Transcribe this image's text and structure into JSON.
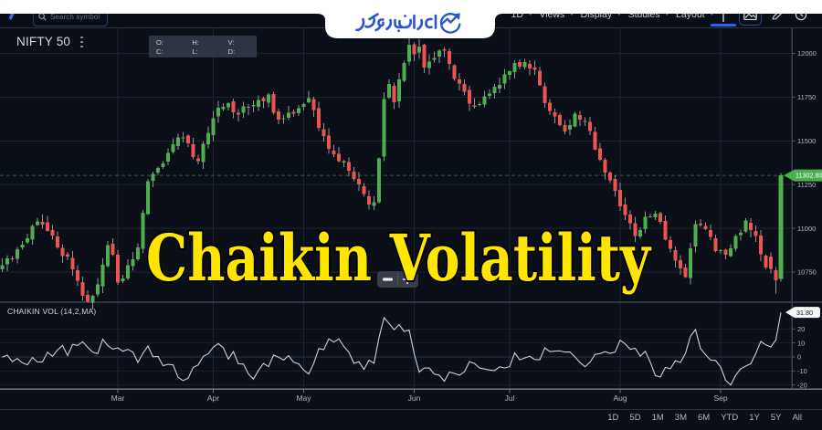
{
  "page": {
    "background": "#0b0f18",
    "accent_blue": "#2962ff"
  },
  "branding": {
    "logo_text": "ایران بروکر",
    "logo_color": "#2b55cc"
  },
  "header": {
    "search": {
      "placeholder": "Search symbol"
    },
    "menus": [
      {
        "label": "1D"
      },
      {
        "label": "Views"
      },
      {
        "label": "Display"
      },
      {
        "label": "Studies"
      },
      {
        "label": "Layout"
      }
    ],
    "icon_buttons": [
      "series-style",
      "snapshot",
      "draw",
      "clock"
    ]
  },
  "symbol": {
    "name": "NIFTY 50"
  },
  "legend": {
    "row1": [
      "O:",
      "H:",
      "V:"
    ],
    "row2": [
      "C:",
      "L:",
      "D:"
    ]
  },
  "overlay": {
    "title": "Chaikin Volatility",
    "title_color": "#ffe600"
  },
  "zoom_control": {
    "minus": "−",
    "plus": "+"
  },
  "footer": {
    "ranges": [
      "1D",
      "5D",
      "1M",
      "3M",
      "6M",
      "YTD",
      "1Y",
      "5Y",
      "All"
    ]
  },
  "chart_data": {
    "type": "candlestick",
    "symbol": "NIFTY 50",
    "title": "NIFTY 50 daily with Chaikin Volatility study",
    "price_axis": {
      "ticks": [
        12000,
        11750,
        11500,
        11250,
        11000,
        10750
      ],
      "range": [
        10560,
        12150
      ]
    },
    "last_price": {
      "value": 11302.8,
      "label": "11302.80",
      "color": "#4caf50"
    },
    "months": [
      {
        "label": "Mar",
        "i": 23
      },
      {
        "label": "Apr",
        "i": 42
      },
      {
        "label": "May",
        "i": 60
      },
      {
        "label": "Jun",
        "i": 82
      },
      {
        "label": "Jul",
        "i": 101
      },
      {
        "label": "Aug",
        "i": 123
      },
      {
        "label": "Sep",
        "i": 143
      }
    ],
    "colors": {
      "up": "#4caf50",
      "down": "#ef5350",
      "wick": "#90939b"
    },
    "candles_format": [
      "open",
      "high",
      "low",
      "close"
    ],
    "candles": [
      [
        10766,
        10827,
        10750,
        10790
      ],
      [
        10794,
        10847,
        10755,
        10828
      ],
      [
        10827,
        10841,
        10810,
        10823
      ],
      [
        10825,
        10894,
        10799,
        10880
      ],
      [
        10890,
        10927,
        10877,
        10907
      ],
      [
        10919,
        10968,
        10912,
        10944
      ],
      [
        10934,
        11021,
        10906,
        11013
      ],
      [
        11020,
        11060,
        11014,
        11040
      ],
      [
        11037,
        11079,
        10998,
        11022
      ],
      [
        11034,
        11070,
        10981,
        10985
      ],
      [
        10990,
        11020,
        10935,
        10959
      ],
      [
        10954,
        10982,
        10882,
        10890
      ],
      [
        10888,
        10910,
        10802,
        10842
      ],
      [
        10851,
        10865,
        10817,
        10840
      ],
      [
        10832,
        10871,
        10729,
        10766
      ],
      [
        10761,
        10789,
        10673,
        10700
      ],
      [
        10692,
        10725,
        10589,
        10614
      ],
      [
        10620,
        10645,
        10576,
        10580
      ],
      [
        10576,
        10619,
        10536,
        10614
      ],
      [
        10623,
        10716,
        10608,
        10680
      ],
      [
        10669,
        10830,
        10629,
        10793
      ],
      [
        10783,
        10927,
        10776,
        10905
      ],
      [
        10911,
        10944,
        10841,
        10850
      ],
      [
        10849,
        10874,
        10676,
        10690
      ],
      [
        10699,
        10734,
        10687,
        10713
      ],
      [
        10714,
        10822,
        10703,
        10790
      ],
      [
        10785,
        10865,
        10757,
        10823
      ],
      [
        10822,
        10914,
        10813,
        10890
      ],
      [
        10883,
        11105,
        10857,
        11088
      ],
      [
        11082,
        11282,
        11075,
        11270
      ],
      [
        11273,
        11323,
        11235,
        11310
      ],
      [
        11319,
        11352,
        11306,
        11345
      ],
      [
        11349,
        11384,
        11340,
        11372
      ],
      [
        11382,
        11456,
        11360,
        11430
      ],
      [
        11437,
        11515,
        11426,
        11480
      ],
      [
        11470,
        11540,
        11450,
        11520
      ],
      [
        11519,
        11552,
        11490,
        11520
      ],
      [
        11531,
        11539,
        11466,
        11485
      ],
      [
        11481,
        11518,
        11394,
        11407
      ],
      [
        11400,
        11421,
        11365,
        11385
      ],
      [
        11380,
        11496,
        11341,
        11482
      ],
      [
        11481,
        11582,
        11456,
        11545
      ],
      [
        11534,
        11671,
        11498,
        11629
      ],
      [
        11640,
        11729,
        11604,
        11690
      ],
      [
        11682,
        11716,
        11670,
        11694
      ],
      [
        11691,
        11721,
        11673,
        11715
      ],
      [
        11727,
        11741,
        11629,
        11663
      ],
      [
        11662,
        11682,
        11610,
        11650
      ],
      [
        11662,
        11723,
        11631,
        11698
      ],
      [
        11690,
        11710,
        11649,
        11695
      ],
      [
        11697,
        11730,
        11664,
        11706
      ],
      [
        11695,
        11761,
        11672,
        11735
      ],
      [
        11743,
        11753,
        11687,
        11727
      ],
      [
        11717,
        11776,
        11691,
        11765
      ],
      [
        11769,
        11782,
        11651,
        11660
      ],
      [
        11669,
        11683,
        11596,
        11622
      ],
      [
        11625,
        11650,
        11599,
        11630
      ],
      [
        11631,
        11701,
        11619,
        11662
      ],
      [
        11667,
        11680,
        11636,
        11655
      ],
      [
        11659,
        11704,
        11643,
        11688
      ],
      [
        11694,
        11717,
        11673,
        11710
      ],
      [
        11722,
        11787,
        11715,
        11745
      ],
      [
        11738,
        11752,
        11638,
        11677
      ],
      [
        11686,
        11724,
        11557,
        11575
      ],
      [
        11567,
        11602,
        11497,
        11528
      ],
      [
        11531,
        11572,
        11426,
        11455
      ],
      [
        11443,
        11478,
        11407,
        11422
      ],
      [
        11426,
        11466,
        11376,
        11385
      ],
      [
        11376,
        11392,
        11351,
        11384
      ],
      [
        11379,
        11406,
        11299,
        11330
      ],
      [
        11323,
        11351,
        11269,
        11283
      ],
      [
        11283,
        11321,
        11214,
        11250
      ],
      [
        11240,
        11260,
        11181,
        11195
      ],
      [
        11183,
        11217,
        11107,
        11135
      ],
      [
        11129,
        11182,
        11104,
        11150
      ],
      [
        11148,
        11404,
        11141,
        11400
      ],
      [
        11409,
        11778,
        11384,
        11740
      ],
      [
        11748,
        11851,
        11738,
        11825
      ],
      [
        11816,
        11832,
        11682,
        11720
      ],
      [
        11727,
        11888,
        11689,
        11851
      ],
      [
        11844,
        11958,
        11836,
        11945
      ],
      [
        11952,
        12088,
        11932,
        12050
      ],
      [
        12053,
        12063,
        11956,
        11995
      ],
      [
        12004,
        12081,
        11969,
        12040
      ],
      [
        12049,
        12054,
        11888,
        11920
      ],
      [
        11916,
        11994,
        11881,
        11954
      ],
      [
        11963,
        12010,
        11949,
        11975
      ],
      [
        11982,
        12023,
        11945,
        12015
      ],
      [
        12024,
        12036,
        11980,
        12015
      ],
      [
        12014,
        12030,
        11905,
        11939
      ],
      [
        11933,
        11938,
        11844,
        11855
      ],
      [
        11851,
        11888,
        11788,
        11829
      ],
      [
        11824,
        11852,
        11761,
        11780
      ],
      [
        11792,
        11816,
        11672,
        11712
      ],
      [
        11703,
        11744,
        11684,
        11695
      ],
      [
        11706,
        11724,
        11698,
        11710
      ],
      [
        11708,
        11787,
        11692,
        11755
      ],
      [
        11758,
        11794,
        11739,
        11771
      ],
      [
        11773,
        11824,
        11742,
        11810
      ],
      [
        11798,
        11861,
        11774,
        11821
      ],
      [
        11827,
        11912,
        11797,
        11880
      ],
      [
        11877,
        11904,
        11848,
        11898
      ],
      [
        11893,
        11961,
        11857,
        11945
      ],
      [
        11950,
        11966,
        11909,
        11925
      ],
      [
        11923,
        11969,
        11908,
        11950
      ],
      [
        11941,
        11961,
        11875,
        11915
      ],
      [
        11919,
        11958,
        11878,
        11905
      ],
      [
        11900,
        11925,
        11814,
        11818
      ],
      [
        11812,
        11833,
        11689,
        11715
      ],
      [
        11719,
        11740,
        11649,
        11670
      ],
      [
        11663,
        11685,
        11602,
        11640
      ],
      [
        11647,
        11658,
        11583,
        11590
      ],
      [
        11591,
        11619,
        11538,
        11555
      ],
      [
        11563,
        11621,
        11533,
        11589
      ],
      [
        11582,
        11667,
        11577,
        11655
      ],
      [
        11649,
        11671,
        11586,
        11622
      ],
      [
        11612,
        11635,
        11584,
        11615
      ],
      [
        11608,
        11638,
        11534,
        11557
      ],
      [
        11551,
        11580,
        11446,
        11450
      ],
      [
        11456,
        11489,
        11385,
        11393
      ],
      [
        11391,
        11402,
        11280,
        11320
      ],
      [
        11320,
        11326,
        11260,
        11274
      ],
      [
        11282,
        11303,
        11181,
        11215
      ],
      [
        11219,
        11261,
        11100,
        11127
      ],
      [
        11137,
        11175,
        11048,
        11075
      ],
      [
        11080,
        11103,
        10992,
        11028
      ],
      [
        11029,
        11067,
        10923,
        10955
      ],
      [
        10954,
        11005,
        10941,
        10991
      ],
      [
        10994,
        11098,
        10971,
        11065
      ],
      [
        11068,
        11083,
        11061,
        11068
      ],
      [
        11063,
        11099,
        11047,
        11085
      ],
      [
        11086,
        11095,
        11025,
        11037
      ],
      [
        11042,
        11073,
        10929,
        10935
      ],
      [
        10933,
        10957,
        10863,
        10883
      ],
      [
        10876,
        10896,
        10777,
        10815
      ],
      [
        10817,
        10847,
        10734,
        10771
      ],
      [
        10777,
        10796,
        10716,
        10720
      ],
      [
        10716,
        10918,
        10680,
        10885
      ],
      [
        10896,
        11045,
        10863,
        11025
      ],
      [
        11026,
        11053,
        11008,
        11020
      ],
      [
        11014,
        11034,
        10990,
        10995
      ],
      [
        10991,
        11021,
        10932,
        10952
      ],
      [
        10944,
        10965,
        10861,
        10870
      ],
      [
        10873,
        10880,
        10854,
        10875
      ],
      [
        10877,
        10882,
        10822,
        10850
      ],
      [
        10841,
        10909,
        10835,
        10887
      ],
      [
        10884,
        10967,
        10868,
        10955
      ],
      [
        10961,
        10992,
        10929,
        10974
      ],
      [
        10982,
        11059,
        10975,
        11045
      ],
      [
        11033,
        11058,
        10948,
        10990
      ],
      [
        10986,
        11015,
        10921,
        10955
      ],
      [
        10959,
        10991,
        10812,
        10852
      ],
      [
        10845,
        10850,
        10765,
        10775
      ],
      [
        10840,
        10862,
        10742,
        10768
      ],
      [
        10760,
        10778,
        10628,
        10702
      ],
      [
        10712,
        11315,
        10695,
        11303
      ]
    ],
    "indicator": {
      "name": "CHAIKIN VOL (14,2,MA)",
      "values": [
        -0.1,
        1.3,
        -3.3,
        -1.1,
        -4.2,
        -5.6,
        -0.4,
        -3.6,
        -3.6,
        3.4,
        0.5,
        5.0,
        8.2,
        1.0,
        8.9,
        8.3,
        10.9,
        6.9,
        3.4,
        2.4,
        12.7,
        8.1,
        5.6,
        6.5,
        4.1,
        5.4,
        3.5,
        -3.9,
        2.7,
        7.8,
        0.1,
        0.3,
        -6.2,
        -5.3,
        -5.6,
        -14.5,
        -16.9,
        -15.1,
        -7.5,
        -5.7,
        0.4,
        2.3,
        7.0,
        9.6,
        6.6,
        -1.5,
        3.9,
        -4.9,
        -5.1,
        -12.1,
        -15.8,
        -9.6,
        -4.6,
        -6.9,
        1.4,
        -0.1,
        -2.2,
        0.9,
        -3.8,
        -4.9,
        -9.4,
        -12.1,
        -4.6,
        6.0,
        5.2,
        12.9,
        10.6,
        12.9,
        7.5,
        3.4,
        -4.5,
        -3.4,
        -8.9,
        -2.3,
        -4.5,
        14.0,
        28.0,
        23.9,
        19.4,
        23.1,
        18.2,
        19.3,
        2.3,
        -10.8,
        -7.8,
        -7.9,
        -12.2,
        -13.0,
        -17.3,
        -10.8,
        -11.7,
        -13.0,
        -10.6,
        -3.4,
        -4.6,
        -7.8,
        -8.6,
        -9.3,
        -9.7,
        -7.0,
        -7.9,
        -6.9,
        2.9,
        -2.0,
        -0.7,
        0.5,
        -1.8,
        -2.0,
        6.6,
        3.8,
        4.2,
        4.3,
        3.5,
        3.6,
        0.0,
        -4.0,
        -7.0,
        -3.8,
        1.8,
        2.4,
        3.8,
        2.6,
        3.5,
        12.0,
        9.3,
        5.5,
        6.2,
        0.6,
        4.1,
        -3.7,
        -13.3,
        -14.3,
        -7.4,
        -8.4,
        -2.7,
        -4.0,
        2.6,
        14.8,
        19.6,
        6.0,
        1.6,
        -2.2,
        -2.5,
        -7.1,
        -16.7,
        -20.0,
        -13.1,
        -8.4,
        -6.5,
        -4.8,
        2.4,
        11.1,
        8.6,
        7.1,
        12.2,
        31.8
      ],
      "axis_ticks": [
        20,
        10,
        0,
        -10,
        -20
      ],
      "last_value": 31.8,
      "last_label": "31.80",
      "line_color": "#ccd1da"
    }
  }
}
